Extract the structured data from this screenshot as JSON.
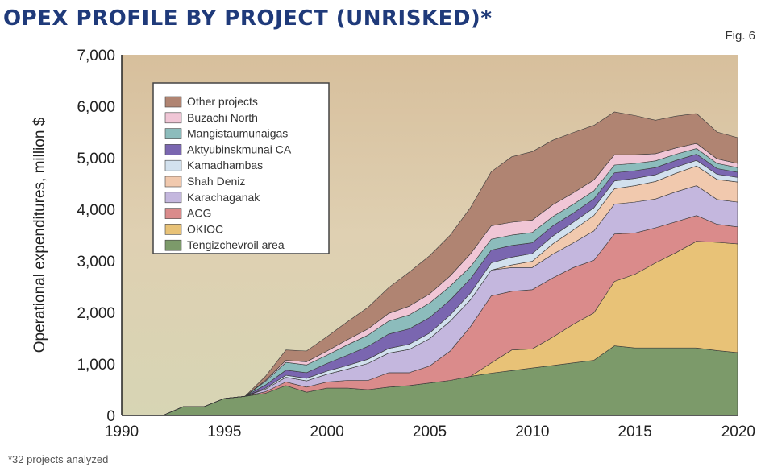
{
  "header": {
    "title": "OPEX PROFILE BY PROJECT (UNRISKED)*",
    "fig": "Fig. 6"
  },
  "footnote": "*32 projects analyzed",
  "colors": {
    "background_top": "#d8c2a0",
    "background_bottom": "#d6d4b2",
    "axis": "#222222"
  },
  "chart_data": {
    "type": "area",
    "stacked": true,
    "title": "OPEX PROFILE BY PROJECT (UNRISKED)*",
    "xlabel": "",
    "ylabel": "Operational expenditures, million $",
    "xlim": [
      1990,
      2020
    ],
    "ylim": [
      0,
      7000
    ],
    "xticks": [
      1990,
      1995,
      2000,
      2005,
      2010,
      2015,
      2020
    ],
    "yticks": [
      0,
      1000,
      2000,
      3000,
      4000,
      5000,
      6000,
      7000
    ],
    "ytick_labels": [
      "0",
      "1,000",
      "2,000",
      "3,000",
      "4,000",
      "5,000",
      "6,000",
      "7,000"
    ],
    "legend_position": "top-left",
    "x": [
      1992,
      1993,
      1994,
      1995,
      1996,
      1997,
      1998,
      1999,
      2000,
      2001,
      2002,
      2003,
      2004,
      2005,
      2006,
      2007,
      2008,
      2009,
      2010,
      2011,
      2012,
      2013,
      2014,
      2015,
      2016,
      2017,
      2018,
      2019,
      2020
    ],
    "series": [
      {
        "name": "Tengizchevroil area",
        "color": "#7c9a6a",
        "values": [
          0,
          170,
          170,
          330,
          370,
          430,
          580,
          450,
          530,
          530,
          500,
          550,
          580,
          630,
          680,
          760,
          820,
          870,
          920,
          970,
          1020,
          1070,
          1350,
          1310,
          1310,
          1310,
          1310,
          1260,
          1220
        ]
      },
      {
        "name": "OKIOC",
        "color": "#e8c277",
        "values": [
          0,
          0,
          0,
          0,
          0,
          0,
          0,
          0,
          0,
          0,
          0,
          0,
          0,
          0,
          0,
          0,
          200,
          400,
          370,
          550,
          750,
          920,
          1250,
          1430,
          1650,
          1850,
          2070,
          2100,
          2110
        ]
      },
      {
        "name": "ACG",
        "color": "#da8b8b",
        "values": [
          0,
          0,
          0,
          0,
          0,
          30,
          70,
          100,
          120,
          150,
          180,
          280,
          250,
          330,
          570,
          970,
          1300,
          1140,
          1150,
          1150,
          1100,
          1020,
          920,
          800,
          680,
          600,
          500,
          350,
          330
        ]
      },
      {
        "name": "Karachaganak",
        "color": "#c4b7de",
        "values": [
          0,
          0,
          0,
          0,
          0,
          50,
          90,
          120,
          150,
          220,
          330,
          380,
          450,
          530,
          580,
          520,
          500,
          460,
          430,
          460,
          480,
          570,
          580,
          600,
          560,
          580,
          580,
          480,
          480
        ]
      },
      {
        "name": "Shah Deniz",
        "color": "#f1c9ae",
        "values": [
          0,
          0,
          0,
          0,
          0,
          0,
          0,
          0,
          0,
          0,
          0,
          0,
          0,
          0,
          0,
          0,
          0,
          50,
          120,
          200,
          250,
          300,
          300,
          320,
          340,
          360,
          380,
          390,
          390
        ]
      },
      {
        "name": "Kamadhambas",
        "color": "#d2e1ee",
        "values": [
          0,
          0,
          0,
          0,
          0,
          20,
          40,
          50,
          60,
          70,
          80,
          90,
          100,
          110,
          120,
          130,
          140,
          150,
          150,
          150,
          150,
          150,
          150,
          140,
          130,
          120,
          110,
          100,
          90
        ]
      },
      {
        "name": "Aktyubinskmunai CA",
        "color": "#7a66b0",
        "values": [
          0,
          0,
          0,
          0,
          0,
          60,
          100,
          110,
          150,
          200,
          250,
          280,
          300,
          300,
          290,
          280,
          250,
          230,
          210,
          200,
          180,
          170,
          160,
          150,
          140,
          130,
          120,
          110,
          100
        ]
      },
      {
        "name": "Mangistaumunaigas",
        "color": "#8cbcbc",
        "values": [
          0,
          0,
          0,
          0,
          0,
          70,
          150,
          150,
          160,
          200,
          220,
          250,
          270,
          280,
          270,
          230,
          210,
          200,
          200,
          180,
          170,
          160,
          150,
          140,
          130,
          120,
          110,
          100,
          90
        ]
      },
      {
        "name": "Buzachi North",
        "color": "#f0c6d6",
        "values": [
          0,
          0,
          0,
          0,
          0,
          20,
          40,
          60,
          80,
          100,
          120,
          150,
          170,
          180,
          200,
          250,
          260,
          250,
          240,
          230,
          220,
          210,
          200,
          170,
          140,
          120,
          100,
          90,
          80
        ]
      },
      {
        "name": "Other projects",
        "color": "#b08472",
        "values": [
          0,
          0,
          0,
          0,
          0,
          80,
          200,
          210,
          280,
          350,
          420,
          500,
          660,
          740,
          790,
          900,
          1050,
          1270,
          1330,
          1250,
          1170,
          1060,
          830,
          760,
          650,
          620,
          580,
          520,
          500
        ]
      }
    ]
  }
}
